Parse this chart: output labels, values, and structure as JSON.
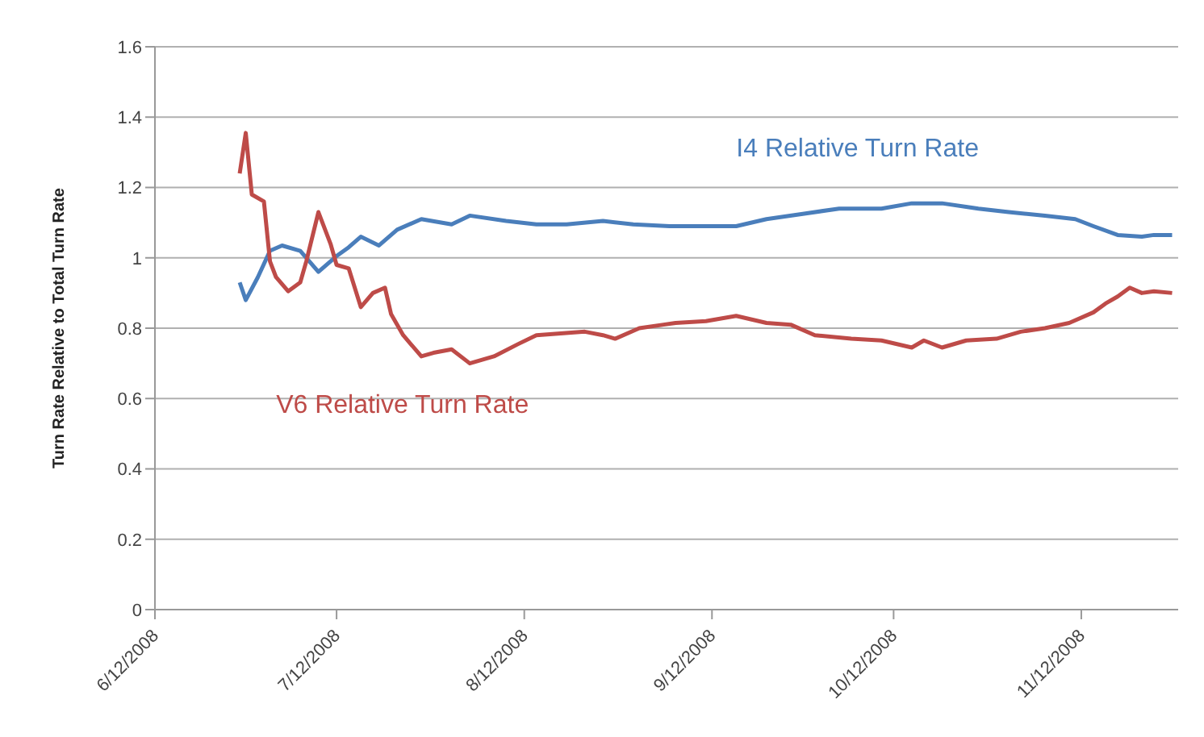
{
  "chart_data": {
    "type": "line",
    "ylabel": "Turn Rate Relative to Total Turn Rate",
    "xlim": [
      "2008-06-12",
      "2008-11-28"
    ],
    "xticks": [
      {
        "value": "2008-06-12",
        "label": "6/12/2008"
      },
      {
        "value": "2008-07-12",
        "label": "7/12/2008"
      },
      {
        "value": "2008-08-12",
        "label": "8/12/2008"
      },
      {
        "value": "2008-09-12",
        "label": "9/12/2008"
      },
      {
        "value": "2008-10-12",
        "label": "10/12/2008"
      },
      {
        "value": "2008-11-12",
        "label": "11/12/2008"
      }
    ],
    "ylim": [
      0,
      1.6
    ],
    "yticks": [
      0,
      0.2,
      0.4,
      0.6,
      0.8,
      1,
      1.2,
      1.4,
      1.6
    ],
    "grid": "y",
    "legend": false,
    "marker": "none",
    "line_style": "solid",
    "series": [
      {
        "name": "I4 Relative Turn Rate",
        "color": "#4a7ebb",
        "x": [
          "2008-06-26",
          "2008-06-27",
          "2008-06-29",
          "2008-07-01",
          "2008-07-03",
          "2008-07-06",
          "2008-07-09",
          "2008-07-12",
          "2008-07-14",
          "2008-07-16",
          "2008-07-19",
          "2008-07-22",
          "2008-07-26",
          "2008-07-31",
          "2008-08-03",
          "2008-08-09",
          "2008-08-14",
          "2008-08-19",
          "2008-08-25",
          "2008-08-30",
          "2008-09-05",
          "2008-09-10",
          "2008-09-16",
          "2008-09-21",
          "2008-09-27",
          "2008-10-03",
          "2008-10-10",
          "2008-10-15",
          "2008-10-20",
          "2008-10-26",
          "2008-10-31",
          "2008-11-06",
          "2008-11-11",
          "2008-11-14",
          "2008-11-18",
          "2008-11-22",
          "2008-11-24",
          "2008-11-27"
        ],
        "values": [
          0.93,
          0.88,
          0.945,
          1.02,
          1.035,
          1.02,
          0.96,
          1.005,
          1.03,
          1.06,
          1.035,
          1.08,
          1.11,
          1.095,
          1.12,
          1.105,
          1.095,
          1.095,
          1.105,
          1.095,
          1.09,
          1.09,
          1.09,
          1.11,
          1.125,
          1.14,
          1.14,
          1.155,
          1.155,
          1.14,
          1.13,
          1.12,
          1.11,
          1.09,
          1.065,
          1.06,
          1.065,
          1.065
        ]
      },
      {
        "name": "V6 Relative Turn Rate",
        "color": "#be4b48",
        "x": [
          "2008-06-26",
          "2008-06-27",
          "2008-06-28",
          "2008-06-30",
          "2008-07-01",
          "2008-07-02",
          "2008-07-04",
          "2008-07-06",
          "2008-07-07",
          "2008-07-09",
          "2008-07-11",
          "2008-07-12",
          "2008-07-14",
          "2008-07-16",
          "2008-07-18",
          "2008-07-20",
          "2008-07-21",
          "2008-07-23",
          "2008-07-26",
          "2008-07-28",
          "2008-07-31",
          "2008-08-03",
          "2008-08-07",
          "2008-08-11",
          "2008-08-14",
          "2008-08-18",
          "2008-08-22",
          "2008-08-25",
          "2008-08-27",
          "2008-08-31",
          "2008-09-04",
          "2008-09-06",
          "2008-09-11",
          "2008-09-16",
          "2008-09-21",
          "2008-09-25",
          "2008-09-29",
          "2008-10-05",
          "2008-10-10",
          "2008-10-15",
          "2008-10-17",
          "2008-10-20",
          "2008-10-24",
          "2008-10-29",
          "2008-11-02",
          "2008-11-06",
          "2008-11-10",
          "2008-11-14",
          "2008-11-16",
          "2008-11-18",
          "2008-11-20",
          "2008-11-22",
          "2008-11-24",
          "2008-11-27"
        ],
        "values": [
          1.24,
          1.355,
          1.18,
          1.16,
          0.99,
          0.945,
          0.905,
          0.93,
          0.99,
          1.13,
          1.04,
          0.98,
          0.97,
          0.86,
          0.9,
          0.915,
          0.84,
          0.78,
          0.72,
          0.73,
          0.74,
          0.7,
          0.72,
          0.755,
          0.78,
          0.785,
          0.79,
          0.78,
          0.77,
          0.8,
          0.81,
          0.815,
          0.82,
          0.835,
          0.815,
          0.81,
          0.78,
          0.77,
          0.765,
          0.745,
          0.765,
          0.745,
          0.765,
          0.77,
          0.79,
          0.8,
          0.815,
          0.845,
          0.87,
          0.89,
          0.915,
          0.9,
          0.905,
          0.9
        ]
      }
    ]
  }
}
